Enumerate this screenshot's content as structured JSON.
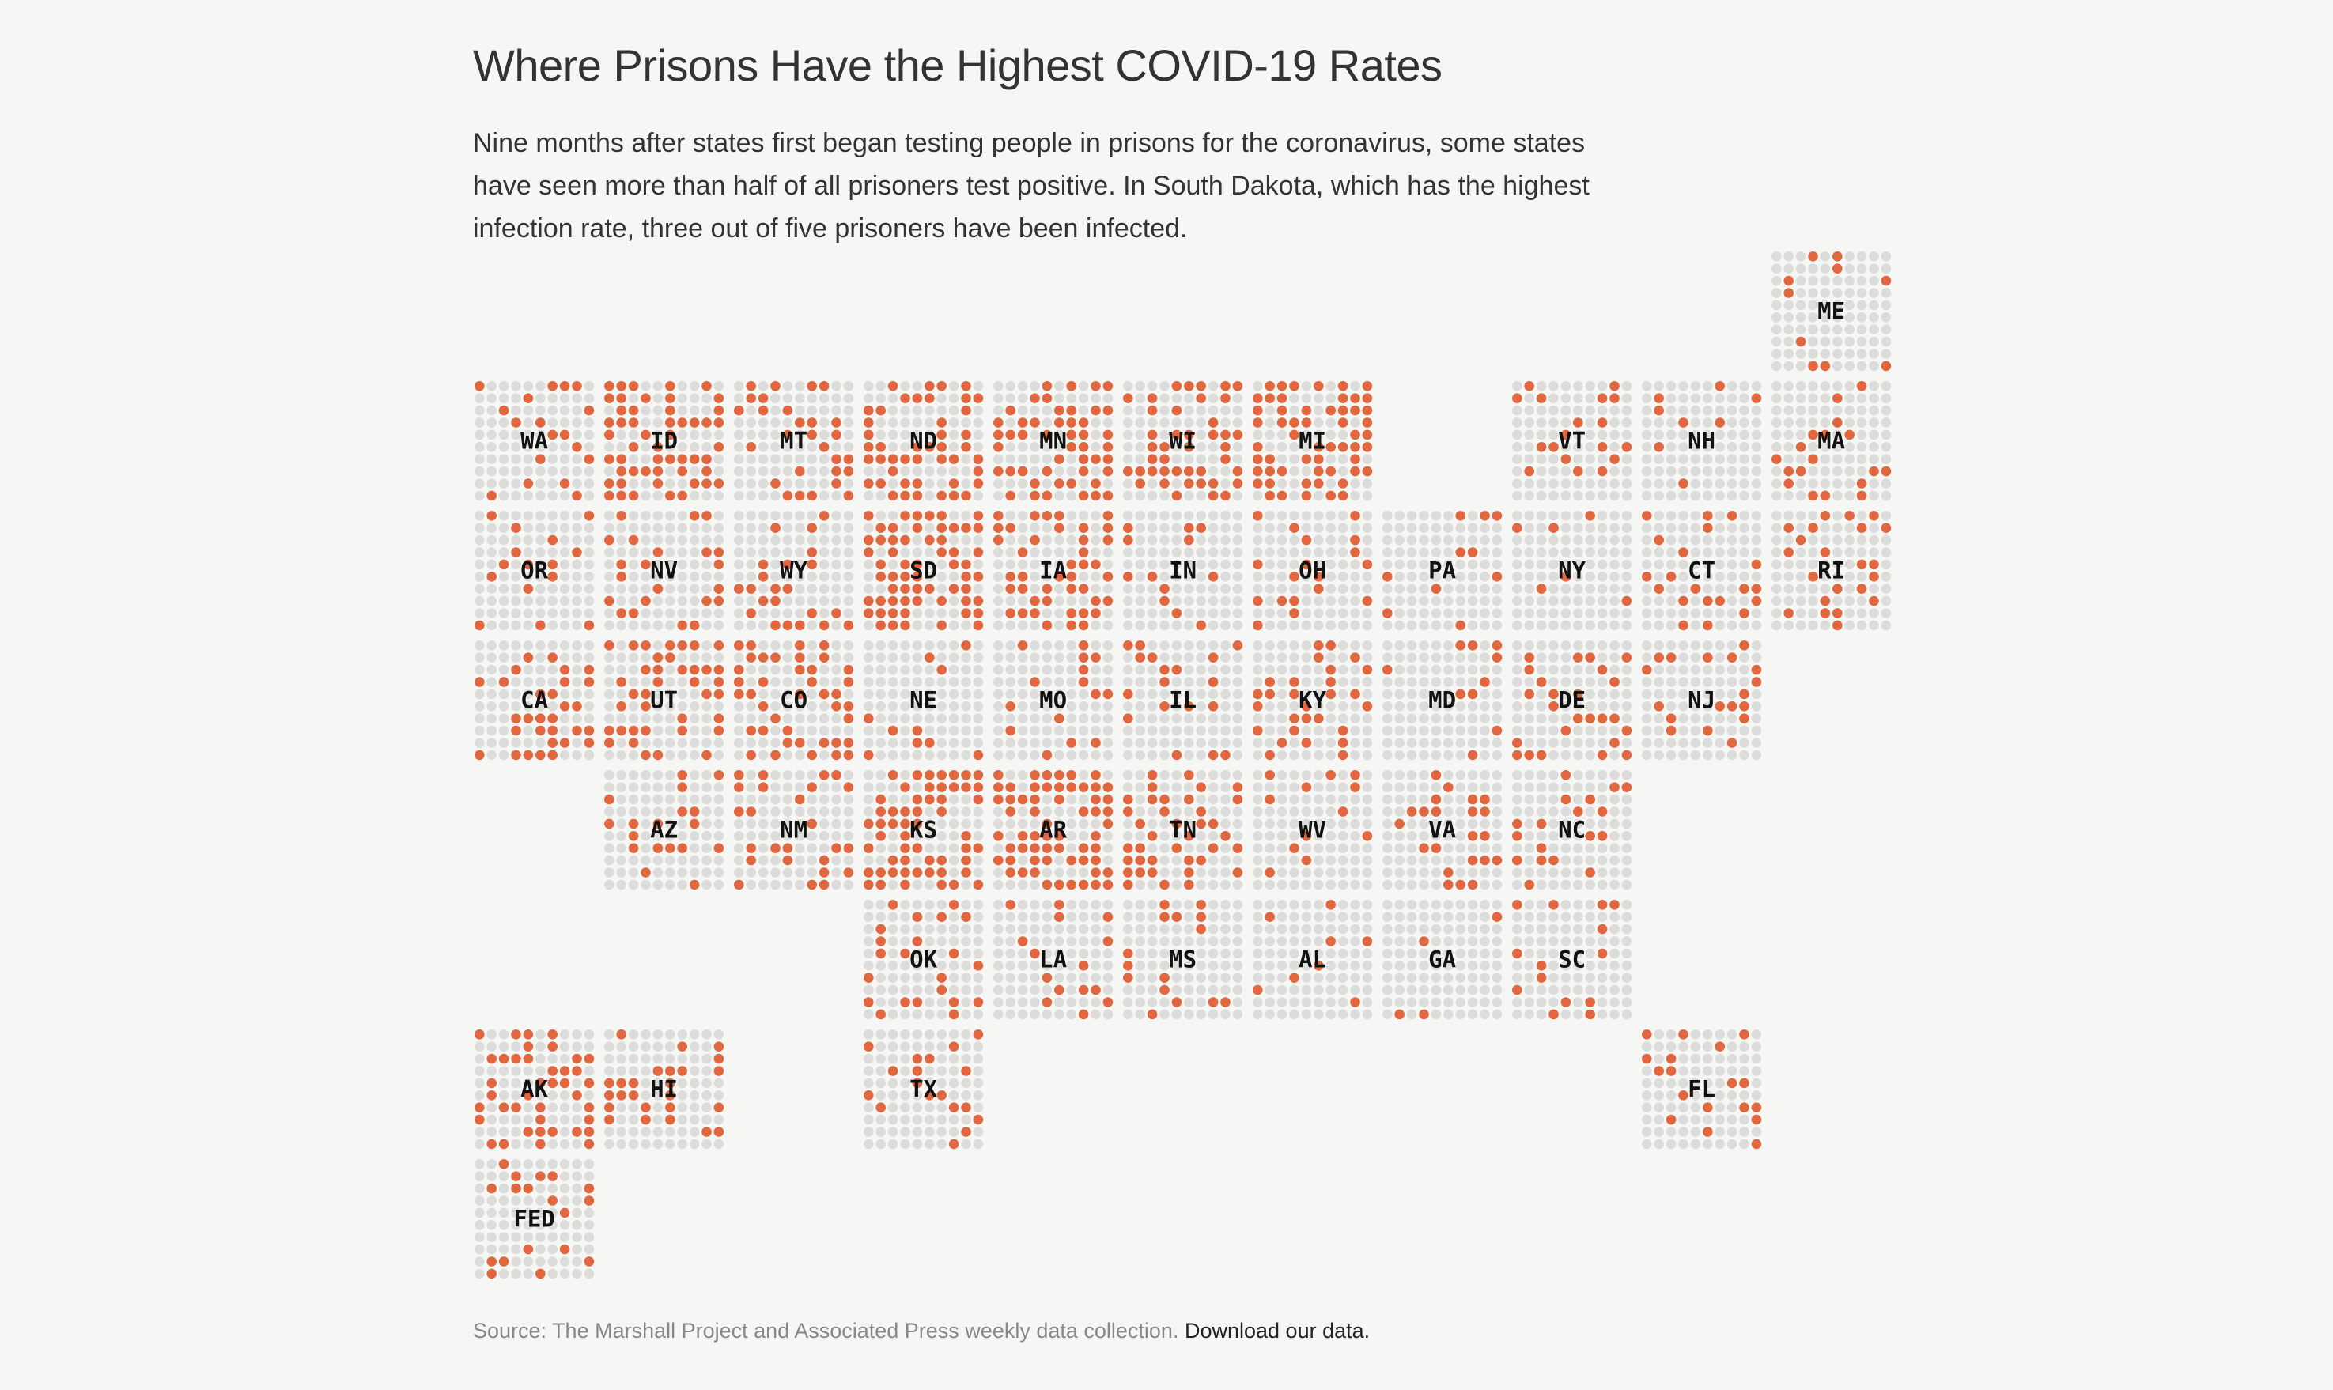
{
  "title": "Where Prisons Have the Highest COVID-19 Rates",
  "dek": "Nine months after states first began testing people in prisons for the coronavirus, some states have seen more than half of all prisoners test positive. In South Dakota, which has the highest infection rate, three out of five prisoners have been infected.",
  "source": {
    "text": "Source: The Marshall Project and Associated Press weekly data collection.",
    "link_label": "Download our data."
  },
  "colors": {
    "positive": "#e0673f",
    "neutral": "#dcdcdb",
    "label": "#111111"
  },
  "chart_data": {
    "type": "tile-grid map (waffle)",
    "title": "Where Prisons Have the Highest COVID-19 Rates",
    "unit": "share of prisoners who tested positive, per 100 dots (10x10 per state)",
    "states": [
      {
        "code": "ME",
        "col": 10,
        "row": 0,
        "positives": 10
      },
      {
        "code": "WA",
        "col": 0,
        "row": 1,
        "positives": 18
      },
      {
        "code": "ID",
        "col": 1,
        "row": 1,
        "positives": 52
      },
      {
        "code": "MT",
        "col": 2,
        "row": 1,
        "positives": 28
      },
      {
        "code": "ND",
        "col": 3,
        "row": 1,
        "positives": 45
      },
      {
        "code": "MN",
        "col": 4,
        "row": 1,
        "positives": 48
      },
      {
        "code": "WI",
        "col": 5,
        "row": 1,
        "positives": 42
      },
      {
        "code": "MI",
        "col": 6,
        "row": 1,
        "positives": 56
      },
      {
        "code": "VT",
        "col": 8,
        "row": 1,
        "positives": 18
      },
      {
        "code": "NH",
        "col": 9,
        "row": 1,
        "positives": 8
      },
      {
        "code": "MA",
        "col": 10,
        "row": 1,
        "positives": 18
      },
      {
        "code": "OR",
        "col": 0,
        "row": 2,
        "positives": 15
      },
      {
        "code": "NV",
        "col": 1,
        "row": 2,
        "positives": 22
      },
      {
        "code": "WY",
        "col": 2,
        "row": 2,
        "positives": 22
      },
      {
        "code": "SD",
        "col": 3,
        "row": 2,
        "positives": 60
      },
      {
        "code": "IA",
        "col": 4,
        "row": 2,
        "positives": 42
      },
      {
        "code": "IN",
        "col": 5,
        "row": 2,
        "positives": 12
      },
      {
        "code": "OH",
        "col": 6,
        "row": 2,
        "positives": 18
      },
      {
        "code": "PA",
        "col": 7,
        "row": 2,
        "positives": 10
      },
      {
        "code": "NY",
        "col": 8,
        "row": 2,
        "positives": 6
      },
      {
        "code": "CT",
        "col": 9,
        "row": 2,
        "positives": 20
      },
      {
        "code": "RI",
        "col": 10,
        "row": 2,
        "positives": 22
      },
      {
        "code": "CA",
        "col": 0,
        "row": 3,
        "positives": 30
      },
      {
        "code": "UT",
        "col": 1,
        "row": 3,
        "positives": 38
      },
      {
        "code": "CO",
        "col": 2,
        "row": 3,
        "positives": 40
      },
      {
        "code": "NE",
        "col": 3,
        "row": 3,
        "positives": 10
      },
      {
        "code": "MO",
        "col": 4,
        "row": 3,
        "positives": 15
      },
      {
        "code": "IL",
        "col": 5,
        "row": 3,
        "positives": 18
      },
      {
        "code": "KY",
        "col": 6,
        "row": 3,
        "positives": 28
      },
      {
        "code": "MD",
        "col": 7,
        "row": 3,
        "positives": 10
      },
      {
        "code": "DE",
        "col": 8,
        "row": 3,
        "positives": 25
      },
      {
        "code": "NJ",
        "col": 9,
        "row": 3,
        "positives": 18
      },
      {
        "code": "AZ",
        "col": 1,
        "row": 4,
        "positives": 18
      },
      {
        "code": "NM",
        "col": 2,
        "row": 4,
        "positives": 25
      },
      {
        "code": "KS",
        "col": 3,
        "row": 4,
        "positives": 55
      },
      {
        "code": "AR",
        "col": 4,
        "row": 4,
        "positives": 60
      },
      {
        "code": "TN",
        "col": 5,
        "row": 4,
        "positives": 38
      },
      {
        "code": "WV",
        "col": 6,
        "row": 4,
        "positives": 12
      },
      {
        "code": "VA",
        "col": 7,
        "row": 4,
        "positives": 22
      },
      {
        "code": "NC",
        "col": 8,
        "row": 4,
        "positives": 18
      },
      {
        "code": "OK",
        "col": 3,
        "row": 5,
        "positives": 22
      },
      {
        "code": "LA",
        "col": 4,
        "row": 5,
        "positives": 15
      },
      {
        "code": "MS",
        "col": 5,
        "row": 5,
        "positives": 15
      },
      {
        "code": "AL",
        "col": 6,
        "row": 5,
        "positives": 8
      },
      {
        "code": "GA",
        "col": 7,
        "row": 5,
        "positives": 4
      },
      {
        "code": "SC",
        "col": 8,
        "row": 5,
        "positives": 14
      },
      {
        "code": "AK",
        "col": 0,
        "row": 6,
        "positives": 40
      },
      {
        "code": "HI",
        "col": 1,
        "row": 6,
        "positives": 25
      },
      {
        "code": "TX",
        "col": 3,
        "row": 6,
        "positives": 18
      },
      {
        "code": "FL",
        "col": 9,
        "row": 6,
        "positives": 18
      },
      {
        "code": "FED",
        "col": 0,
        "row": 7,
        "positives": 18
      }
    ]
  }
}
